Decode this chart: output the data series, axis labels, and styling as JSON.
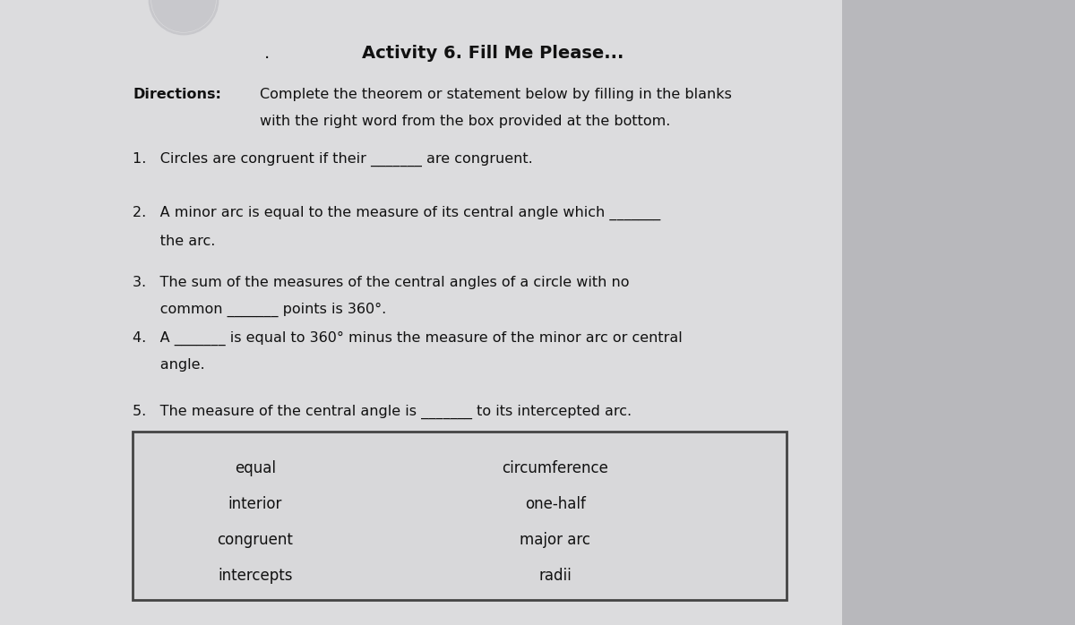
{
  "title": "Activity 6. Fill Me Please...",
  "title_fontsize": 14,
  "directions_label": "Directions:",
  "directions_line1": "Complete the theorem or statement below by filling in the blanks",
  "directions_line2": "with the right word from the box provided at the bottom.",
  "item1_line1": "1.   Circles are congruent if their _______ are congruent.",
  "item2_line1": "2.   A minor arc is equal to the measure of its central angle which _______",
  "item2_line2": "      the arc.",
  "item3_line1": "3.   The sum of the measures of the central angles of a circle with no",
  "item3_line2": "      common _______ points is 360°.",
  "item4_line1": "4.   A _______ is equal to 360° minus the measure of the minor arc or central",
  "item4_line2": "      angle.",
  "item5_line1": "5.   The measure of the central angle is _______ to its intercepted arc.",
  "box_left_col": [
    "equal",
    "interior",
    "congruent",
    "intercepts"
  ],
  "box_right_col": [
    "circumference",
    "one-half",
    "major arc",
    "radii"
  ],
  "bg_color": "#c8c8cc",
  "paper_color": "#dcdcde",
  "right_panel_color": "#b8b8bc",
  "text_color": "#111111",
  "box_bg": "#d8d8da",
  "circle_color": "#222222"
}
